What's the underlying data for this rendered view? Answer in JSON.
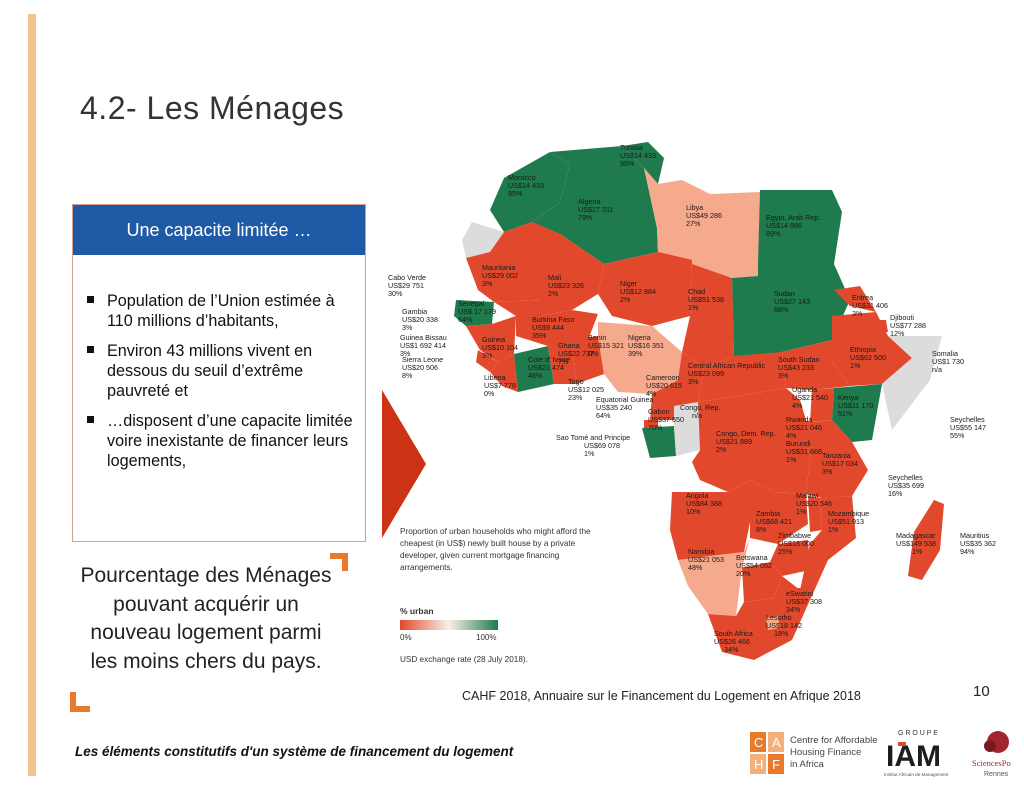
{
  "title": "4.2- Les Ménages",
  "box": {
    "heading": "Une capacite limitée …",
    "bullets": [
      "Population de l’Union estimée à 110 millions d’habitants,",
      "Environ 43 millions vivent en dessous du seuil d’extrême pauvreté et",
      "…disposent d’une capacite limitée voire inexistante de financer leurs logements,"
    ]
  },
  "caption": "Pourcentage des Ménages pouvant acquérir un nouveau logement parmi les moins chers du pays.",
  "map": {
    "colors": {
      "low": "#e2492c",
      "mid": "#f5a98d",
      "high": "#1f7a4d",
      "none": "#dcdcdc"
    },
    "countries": [
      {
        "name": "Tunisia",
        "price": "US$14 433",
        "pct": "95%"
      },
      {
        "name": "Morocco",
        "price": "US$14 433",
        "pct": "95%"
      },
      {
        "name": "Algeria",
        "price": "US$27 311",
        "pct": "79%"
      },
      {
        "name": "Libya",
        "price": "US$49 286",
        "pct": "27%"
      },
      {
        "name": "Egypt, Arab Rep.",
        "price": "US$14 966",
        "pct": "89%"
      },
      {
        "name": "Cabo Verde",
        "price": "US$29 751",
        "pct": "30%"
      },
      {
        "name": "Mauritania",
        "price": "US$29 002",
        "pct": "3%"
      },
      {
        "name": "Mali",
        "price": "US$23 326",
        "pct": "2%"
      },
      {
        "name": "Niger",
        "price": "US$12 884",
        "pct": "2%"
      },
      {
        "name": "Chad",
        "price": "US$51 538",
        "pct": "1%"
      },
      {
        "name": "Sudan",
        "price": "US$27 143",
        "pct": "68%"
      },
      {
        "name": "Eritrea",
        "price": "US$31 406",
        "pct": "3%"
      },
      {
        "name": "Djibouti",
        "price": "US$77 288",
        "pct": "12%"
      },
      {
        "name": "Senegal",
        "price": "US$ 17 179",
        "pct": "64%"
      },
      {
        "name": "Gambia",
        "price": "US$20 338",
        "pct": "3%"
      },
      {
        "name": "Guinea Bissau",
        "price": "US$1 692 414",
        "pct": "3%"
      },
      {
        "name": "Sierra Leone",
        "price": "US$20 506",
        "pct": "8%"
      },
      {
        "name": "Guinea",
        "price": "US$10 104",
        "pct": "3%"
      },
      {
        "name": "Burkina Faso",
        "price": "US$9 444",
        "pct": "35%"
      },
      {
        "name": "Ghana",
        "price": "US$22 737",
        "pct": "7%"
      },
      {
        "name": "Benin",
        "price": "US$15 321",
        "pct": "0%"
      },
      {
        "name": "Nigeria",
        "price": "US$16 351",
        "pct": "39%"
      },
      {
        "name": "Cote d' Ivoire",
        "price": "US$21 474",
        "pct": "46%"
      },
      {
        "name": "Liberia",
        "price": "US$7 778",
        "pct": "0%"
      },
      {
        "name": "Togo",
        "price": "US$12 025",
        "pct": "23%"
      },
      {
        "name": "Central African Republic",
        "price": "US$23 099",
        "pct": "3%"
      },
      {
        "name": "South Sudan",
        "price": "US$43 233",
        "pct": "3%"
      },
      {
        "name": "Ethiopia",
        "price": "US$62 500",
        "pct": "1%"
      },
      {
        "name": "Somalia",
        "price": "US$1 730",
        "pct": "n/a"
      },
      {
        "name": "Cameroon",
        "price": "US$20 615",
        "pct": "4%"
      },
      {
        "name": "Equatorial Guinea",
        "price": "US$35 240",
        "pct": "64%"
      },
      {
        "name": "Gabon",
        "price": "US$37 650",
        "pct": "70%"
      },
      {
        "name": "Congo, Rep.",
        "price": "n/a",
        "pct": ""
      },
      {
        "name": "Sao Tomé and Principe",
        "price": "US$69 078",
        "pct": "1%"
      },
      {
        "name": "Uganda",
        "price": "US$21 540",
        "pct": "4%"
      },
      {
        "name": "Kenya",
        "price": "US$11 170",
        "pct": "51%"
      },
      {
        "name": "Rwanda",
        "price": "US$21 046",
        "pct": "4%"
      },
      {
        "name": "Burundi",
        "price": "US$31 668",
        "pct": "1%"
      },
      {
        "name": "Congo, Dem. Rep.",
        "price": "US$21 889",
        "pct": "2%"
      },
      {
        "name": "Tanzania",
        "price": "US$17 034",
        "pct": "3%"
      },
      {
        "name": "Seychelles",
        "price": "US$55 147",
        "pct": "55%"
      },
      {
        "name": "Seychelles",
        "price": "US$35 699",
        "pct": "16%"
      },
      {
        "name": "Angola",
        "price": "US$84 388",
        "pct": "10%"
      },
      {
        "name": "Zambia",
        "price": "US$68 421",
        "pct": "8%"
      },
      {
        "name": "Malawi",
        "price": "US$20 546",
        "pct": "1%"
      },
      {
        "name": "Mozambique",
        "price": "US$51 913",
        "pct": "1%"
      },
      {
        "name": "Madagascar",
        "price": "US$149 538",
        "pct": "1%"
      },
      {
        "name": "Mauritius",
        "price": "US$35 362",
        "pct": "94%"
      },
      {
        "name": "Zimbabwe",
        "price": "US$18 000",
        "pct": "25%"
      },
      {
        "name": "Namibia",
        "price": "US$21 053",
        "pct": "48%"
      },
      {
        "name": "Botswana",
        "price": "US$54 052",
        "pct": "20%"
      },
      {
        "name": "eSwatini",
        "price": "US$37 308",
        "pct": "34%"
      },
      {
        "name": "Lesotho",
        "price": "US$18 142",
        "pct": "18%"
      },
      {
        "name": "South Africa",
        "price": "US$26 466",
        "pct": "34%"
      }
    ],
    "legend": {
      "description": "Proportion of urban households who might afford the cheapest (in US$) newly built house by a private developer, given current mortgage financing arrangements.",
      "scale_title": "% urban",
      "min_label": "0%",
      "max_label": "100%",
      "exchange_note": "USD exchange rate (28 July 2018)."
    }
  },
  "source": "CAHF 2018, Annuaire sur le Financement du Logement en Afrique 2018",
  "page_number": "10",
  "footer": "Les éléments constitutifs d'un système de financement du logement",
  "logos": {
    "cahf": {
      "letters": [
        "C",
        "A",
        "H",
        "F"
      ],
      "text": [
        "Centre for Affordable",
        "Housing Finance",
        "in Africa"
      ]
    },
    "iam": {
      "top": "G R O U P E",
      "main": "IAM",
      "sub": "Institut Africain de Management"
    },
    "sciencespo": {
      "main": "SciencesPo",
      "sub": "Rennes"
    }
  }
}
